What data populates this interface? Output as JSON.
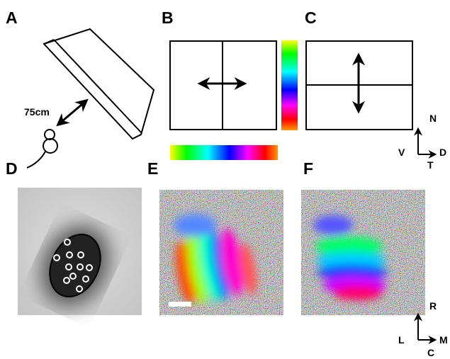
{
  "panels": {
    "a": "A",
    "b": "B",
    "c": "C",
    "d": "D",
    "e": "E",
    "f": "F"
  },
  "distance_label": "75cm",
  "orientation_top": {
    "up": "N",
    "left": "V",
    "right": "D",
    "down": "T"
  },
  "orientation_bottom": {
    "up": "R",
    "left": "L",
    "right": "M",
    "down": "C"
  }
}
